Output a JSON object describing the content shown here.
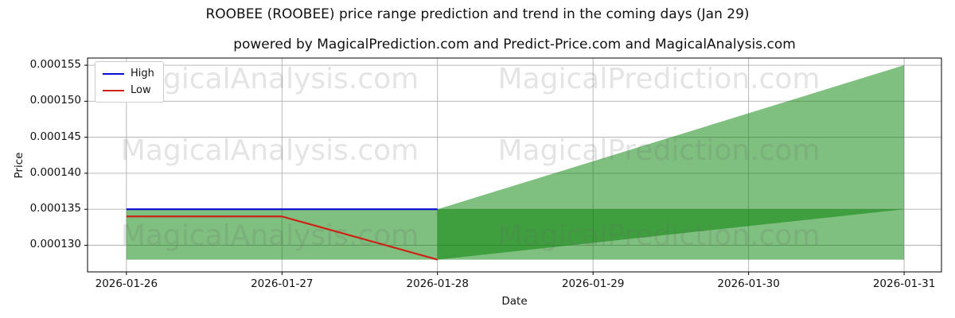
{
  "chart_data": {
    "type": "line",
    "title": "ROOBEE (ROOBEE) price range prediction and trend in the coming days (Jan 29)",
    "subtitle": "powered by MagicalPrediction.com and Predict-Price.com and MagicalAnalysis.com",
    "xlabel": "Date",
    "ylabel": "Price",
    "x_categories": [
      "2026-01-26",
      "2026-01-27",
      "2026-01-28",
      "2026-01-29",
      "2026-01-30",
      "2026-01-31"
    ],
    "y_ticks": [
      0.00013,
      0.000135,
      0.00014,
      0.000145,
      0.00015,
      0.000155
    ],
    "y_tick_labels": [
      "0.000130",
      "0.000135",
      "0.000140",
      "0.000145",
      "0.000150",
      "0.000155"
    ],
    "ylim": [
      0.0001263,
      0.000156
    ],
    "xlim": [
      -0.25,
      5.24
    ],
    "grid": true,
    "grid_color": "#b0b0b0",
    "spine_color": "#000000",
    "legend": {
      "position": "upper-left",
      "items": [
        {
          "label": "High",
          "color": "#0b0bd6"
        },
        {
          "label": "Low",
          "color": "#cc2418"
        }
      ]
    },
    "series": [
      {
        "name": "High",
        "color": "#0b0bd6",
        "x": [
          0,
          1,
          2
        ],
        "y": [
          0.000135,
          0.000135,
          0.000135
        ]
      },
      {
        "name": "Low",
        "color": "#cc2418",
        "x": [
          0,
          1,
          2
        ],
        "y": [
          0.000134,
          0.000134,
          0.000128
        ]
      }
    ],
    "bands": [
      {
        "name": "price-range-band",
        "color": "#008000",
        "opacity": 0.5,
        "x": [
          0,
          5
        ],
        "upper": [
          0.000135,
          0.000135
        ],
        "lower": [
          0.000128,
          0.000128
        ]
      },
      {
        "name": "forecast-fan",
        "color": "#008000",
        "opacity": 0.5,
        "x": [
          2,
          5
        ],
        "upper": [
          0.000135,
          0.000155
        ],
        "lower": [
          0.000128,
          0.000135
        ]
      }
    ]
  },
  "watermarks": {
    "color": "rgba(105,105,105,0.18)",
    "items": [
      {
        "text": "MagicalAnalysis.com"
      },
      {
        "text": "MagicalPrediction.com"
      },
      {
        "text": "MagicalAnalysis.com"
      },
      {
        "text": "MagicalPrediction.com"
      },
      {
        "text": "MagicalAnalysis.com"
      },
      {
        "text": "MagicalPrediction.com"
      }
    ]
  }
}
